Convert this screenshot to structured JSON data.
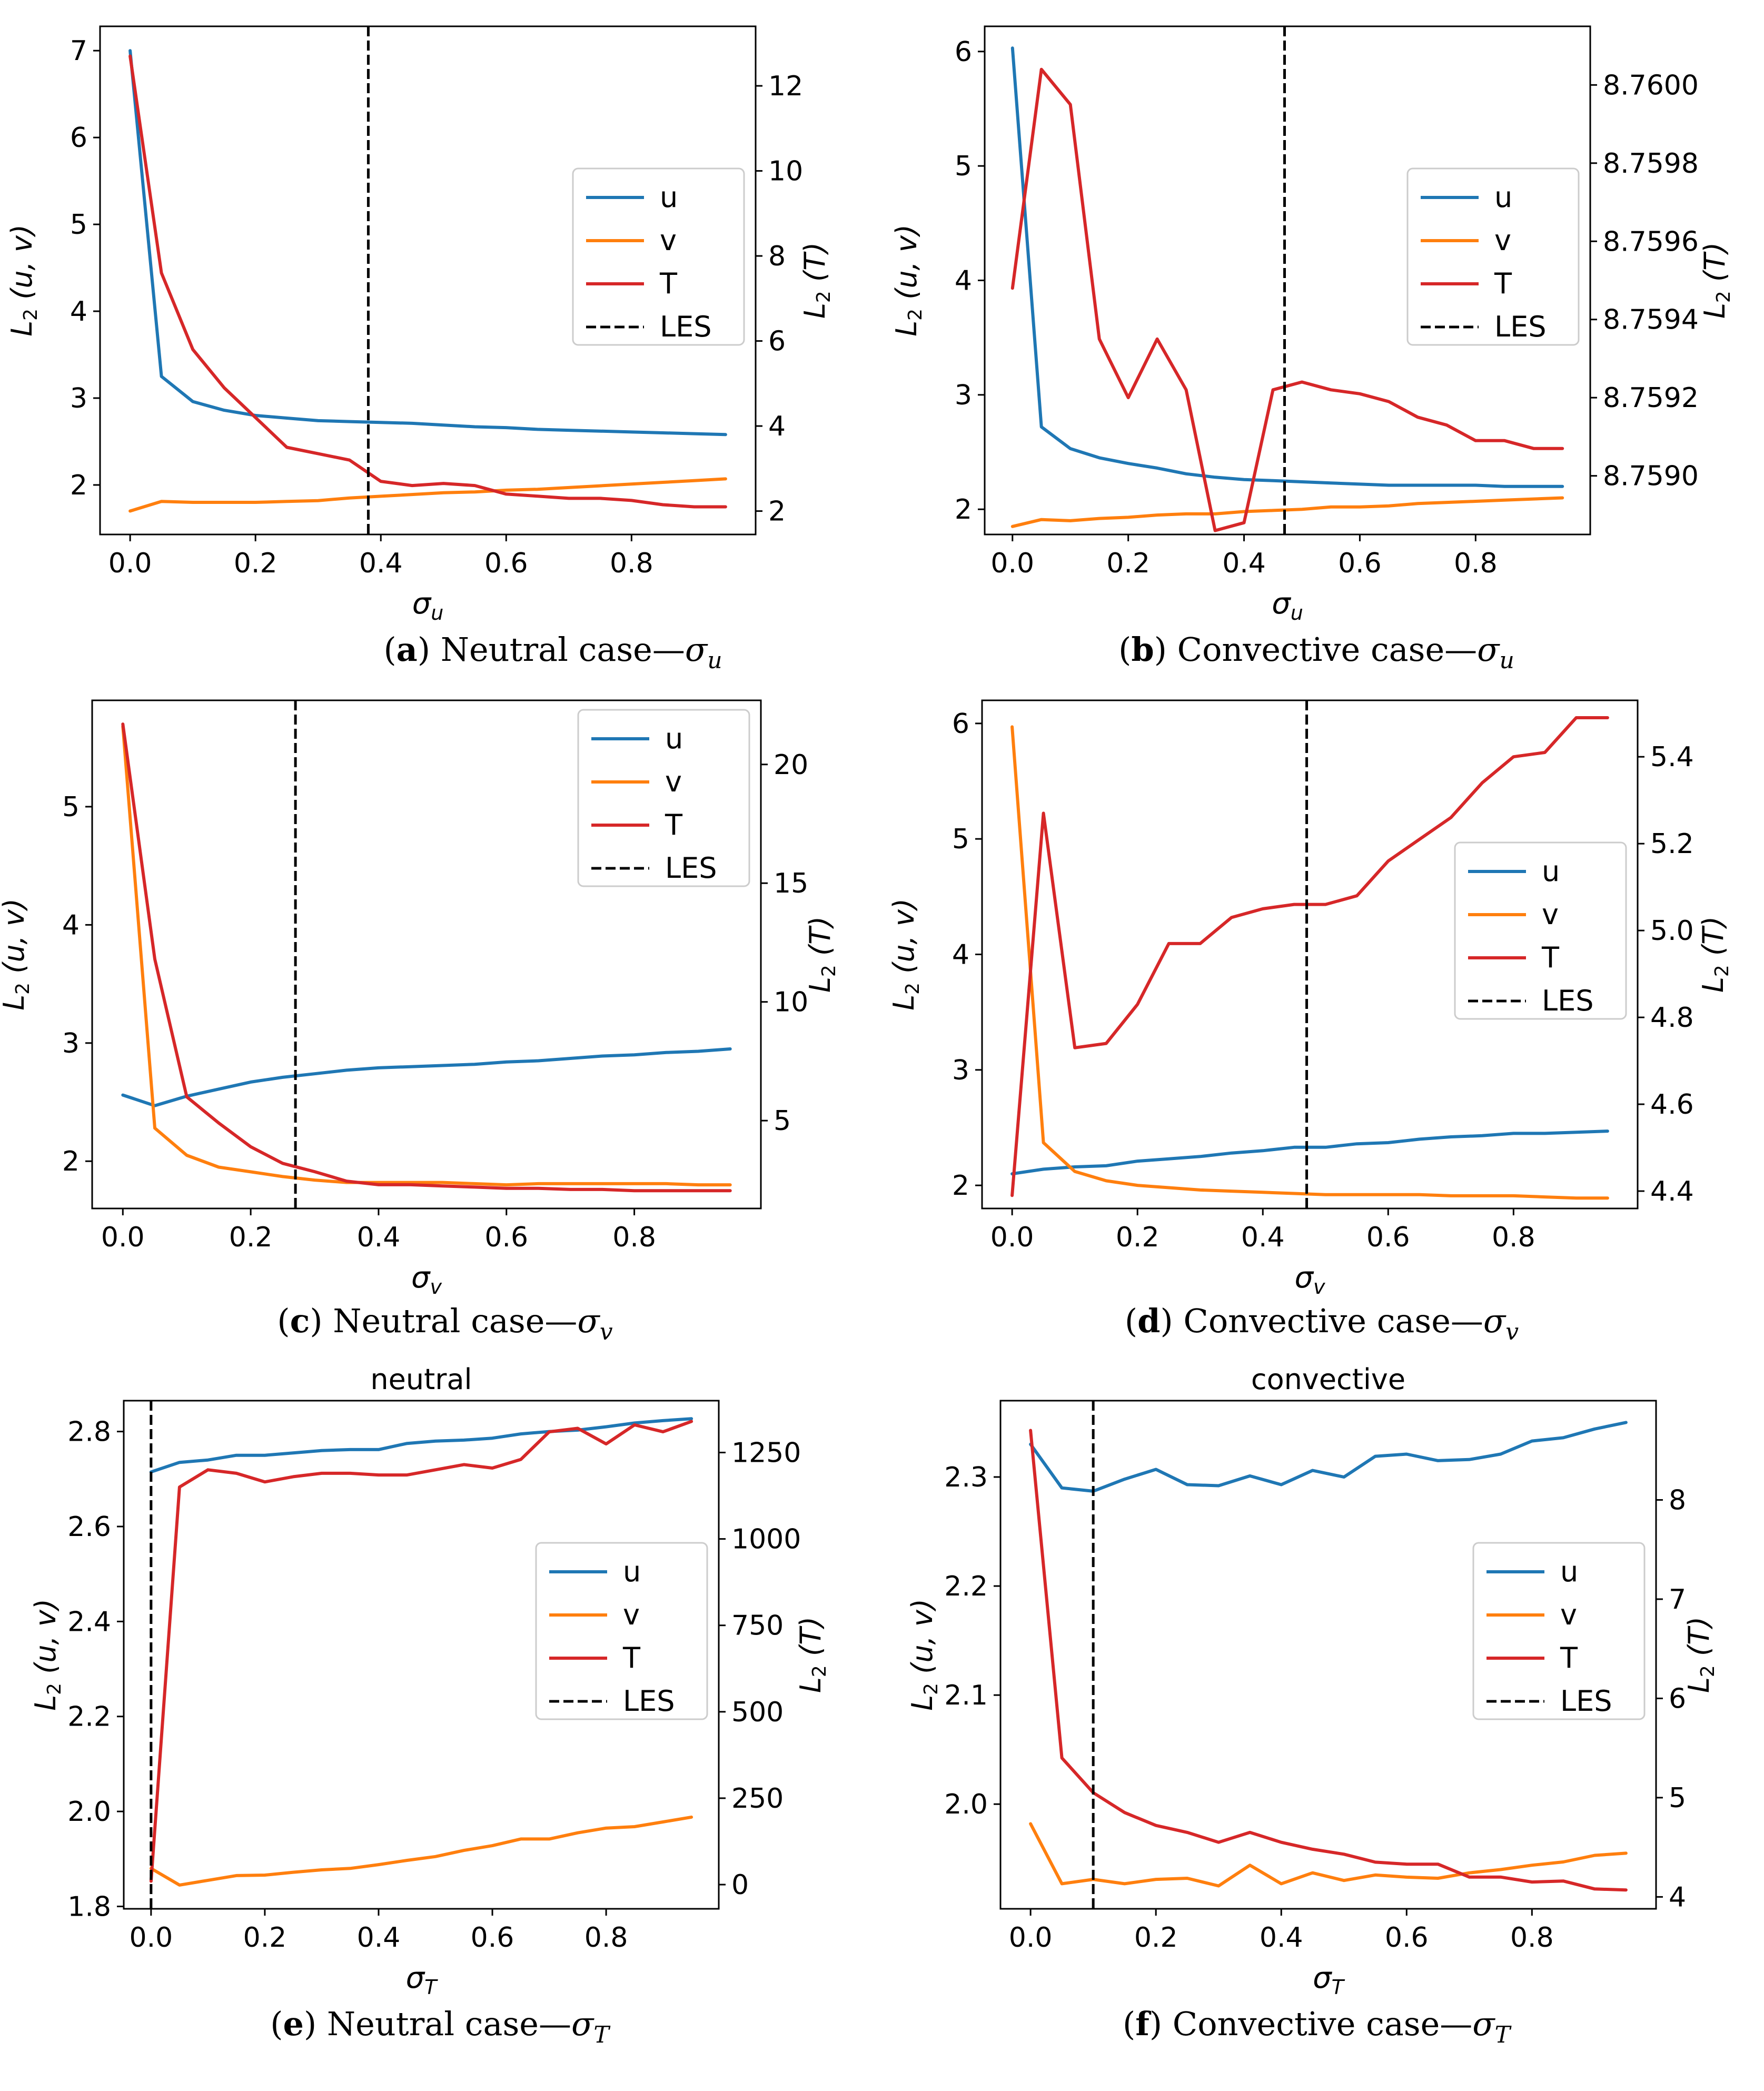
{
  "colors": {
    "u": "#1f77b4",
    "v": "#ff7f0e",
    "T": "#d62728",
    "LES": "#000000"
  },
  "chart_data": [
    {
      "id": "a",
      "type": "line",
      "title": "",
      "xlabel": "σ",
      "xlabel_sub": "u",
      "ylabel": "L",
      "ylabel_sub": "2",
      "ylabel_rest": " (u, v)",
      "y2label": "L",
      "y2label_sub": "2",
      "y2label_rest": " (T)",
      "xlim": [
        -0.048,
        0.998
      ],
      "ylim": [
        1.43,
        7.28
      ],
      "y2lim": [
        1.45,
        13.4
      ],
      "xticks": [
        0.0,
        0.2,
        0.4,
        0.6,
        0.8
      ],
      "xticklabels": [
        "0.0",
        "0.2",
        "0.4",
        "0.6",
        "0.8"
      ],
      "yticks": [
        2,
        3,
        4,
        5,
        6,
        7
      ],
      "yticklabels": [
        "2",
        "3",
        "4",
        "5",
        "6",
        "7"
      ],
      "y2ticks": [
        2,
        4,
        6,
        8,
        10,
        12
      ],
      "y2ticklabels": [
        "2",
        "4",
        "6",
        "8",
        "10",
        "12"
      ],
      "x": [
        0.0,
        0.05,
        0.1,
        0.15,
        0.2,
        0.25,
        0.3,
        0.35,
        0.4,
        0.45,
        0.5,
        0.55,
        0.6,
        0.65,
        0.7,
        0.75,
        0.8,
        0.85,
        0.9,
        0.95
      ],
      "series": [
        {
          "name": "u",
          "axis": "left",
          "values": [
            7.0,
            3.25,
            2.96,
            2.86,
            2.8,
            2.77,
            2.74,
            2.73,
            2.72,
            2.71,
            2.69,
            2.67,
            2.66,
            2.64,
            2.63,
            2.62,
            2.61,
            2.6,
            2.59,
            2.58
          ]
        },
        {
          "name": "v",
          "axis": "left",
          "values": [
            1.7,
            1.81,
            1.8,
            1.8,
            1.8,
            1.81,
            1.82,
            1.85,
            1.87,
            1.89,
            1.91,
            1.92,
            1.94,
            1.95,
            1.97,
            1.99,
            2.01,
            2.03,
            2.05,
            2.07
          ]
        },
        {
          "name": "T",
          "axis": "right",
          "values": [
            12.7,
            7.6,
            5.8,
            4.9,
            4.2,
            3.5,
            3.35,
            3.2,
            2.7,
            2.6,
            2.65,
            2.6,
            2.4,
            2.35,
            2.3,
            2.3,
            2.25,
            2.15,
            2.1,
            2.1
          ]
        }
      ],
      "vline": {
        "name": "LES",
        "x": 0.38
      },
      "legend": [
        "u",
        "v",
        "T",
        "LES"
      ],
      "legend_loc": "center-right",
      "caption": {
        "label": "(a)",
        "text": " Neutral case—σ",
        "sub": "u"
      }
    },
    {
      "id": "b",
      "type": "line",
      "title": "",
      "xlabel": "σ",
      "xlabel_sub": "u",
      "ylabel": "L",
      "ylabel_sub": "2",
      "ylabel_rest": " (u, v)",
      "y2label": "L",
      "y2label_sub": "2",
      "y2label_rest": " (T)",
      "xlim": [
        -0.048,
        0.998
      ],
      "ylim": [
        1.78,
        6.22
      ],
      "y2lim": [
        8.75885,
        8.76015
      ],
      "xticks": [
        0.0,
        0.2,
        0.4,
        0.6,
        0.8
      ],
      "xticklabels": [
        "0.0",
        "0.2",
        "0.4",
        "0.6",
        "0.8"
      ],
      "yticks": [
        2,
        3,
        4,
        5,
        6
      ],
      "yticklabels": [
        "2",
        "3",
        "4",
        "5",
        "6"
      ],
      "y2ticks": [
        8.759,
        8.7592,
        8.7594,
        8.7596,
        8.7598,
        8.76
      ],
      "y2ticklabels": [
        "8.7590",
        "8.7592",
        "8.7594",
        "8.7596",
        "8.7598",
        "8.7600"
      ],
      "x": [
        0.0,
        0.05,
        0.1,
        0.15,
        0.2,
        0.25,
        0.3,
        0.35,
        0.4,
        0.45,
        0.5,
        0.55,
        0.6,
        0.65,
        0.7,
        0.75,
        0.8,
        0.85,
        0.9,
        0.95
      ],
      "series": [
        {
          "name": "u",
          "axis": "left",
          "values": [
            6.03,
            2.72,
            2.53,
            2.45,
            2.4,
            2.36,
            2.31,
            2.28,
            2.26,
            2.25,
            2.24,
            2.23,
            2.22,
            2.21,
            2.21,
            2.21,
            2.21,
            2.2,
            2.2,
            2.2
          ]
        },
        {
          "name": "v",
          "axis": "left",
          "values": [
            1.85,
            1.91,
            1.9,
            1.92,
            1.93,
            1.95,
            1.96,
            1.96,
            1.98,
            1.99,
            2.0,
            2.02,
            2.02,
            2.03,
            2.05,
            2.06,
            2.07,
            2.08,
            2.09,
            2.1
          ]
        },
        {
          "name": "T",
          "axis": "right",
          "values": [
            8.75948,
            8.76004,
            8.75995,
            8.75935,
            8.7592,
            8.75935,
            8.75922,
            8.75886,
            8.75888,
            8.75922,
            8.75924,
            8.75922,
            8.75921,
            8.75919,
            8.75915,
            8.75913,
            8.75909,
            8.75909,
            8.75907,
            8.75907
          ]
        }
      ],
      "vline": {
        "name": "LES",
        "x": 0.47
      },
      "legend": [
        "u",
        "v",
        "T",
        "LES"
      ],
      "legend_loc": "center-right",
      "caption": {
        "label": "(b)",
        "text": " Convective case—σ",
        "sub": "u"
      }
    },
    {
      "id": "c",
      "type": "line",
      "title": "",
      "xlabel": "σ",
      "xlabel_sub": "v",
      "ylabel": "L",
      "ylabel_sub": "2",
      "ylabel_rest": " (u, v)",
      "y2label": "L",
      "y2label_sub": "2",
      "y2label_rest": " (T)",
      "xlim": [
        -0.048,
        0.998
      ],
      "ylim": [
        1.6,
        5.9
      ],
      "y2lim": [
        1.3,
        22.7
      ],
      "xticks": [
        0.0,
        0.2,
        0.4,
        0.6,
        0.8
      ],
      "xticklabels": [
        "0.0",
        "0.2",
        "0.4",
        "0.6",
        "0.8"
      ],
      "yticks": [
        2,
        3,
        4,
        5
      ],
      "yticklabels": [
        "2",
        "3",
        "4",
        "5"
      ],
      "y2ticks": [
        5,
        10,
        15,
        20
      ],
      "y2ticklabels": [
        "5",
        "10",
        "15",
        "20"
      ],
      "x": [
        0.0,
        0.05,
        0.1,
        0.15,
        0.2,
        0.25,
        0.3,
        0.35,
        0.4,
        0.45,
        0.5,
        0.55,
        0.6,
        0.65,
        0.7,
        0.75,
        0.8,
        0.85,
        0.9,
        0.95
      ],
      "series": [
        {
          "name": "u",
          "axis": "left",
          "values": [
            2.56,
            2.47,
            2.55,
            2.61,
            2.67,
            2.71,
            2.74,
            2.77,
            2.79,
            2.8,
            2.81,
            2.82,
            2.84,
            2.85,
            2.87,
            2.89,
            2.9,
            2.92,
            2.93,
            2.95
          ]
        },
        {
          "name": "v",
          "axis": "left",
          "values": [
            5.68,
            2.28,
            2.05,
            1.95,
            1.91,
            1.87,
            1.84,
            1.82,
            1.82,
            1.82,
            1.82,
            1.81,
            1.8,
            1.81,
            1.81,
            1.81,
            1.81,
            1.81,
            1.8,
            1.8
          ]
        },
        {
          "name": "T",
          "axis": "right",
          "values": [
            21.7,
            11.8,
            6.0,
            4.9,
            3.9,
            3.2,
            2.85,
            2.45,
            2.3,
            2.3,
            2.25,
            2.2,
            2.15,
            2.15,
            2.1,
            2.1,
            2.05,
            2.05,
            2.05,
            2.05
          ]
        }
      ],
      "vline": {
        "name": "LES",
        "x": 0.27
      },
      "legend": [
        "u",
        "v",
        "T",
        "LES"
      ],
      "legend_loc": "top-right",
      "caption": {
        "label": "(c)",
        "text": " Neutral case—σ",
        "sub": "v"
      }
    },
    {
      "id": "d",
      "type": "line",
      "title": "",
      "xlabel": "σ",
      "xlabel_sub": "v",
      "ylabel": "L",
      "ylabel_sub": "2",
      "ylabel_rest": " (u, v)",
      "y2label": "L",
      "y2label_sub": "2",
      "y2label_rest": " (T)",
      "xlim": [
        -0.048,
        0.998
      ],
      "ylim": [
        1.8,
        6.2
      ],
      "y2lim": [
        4.36,
        5.53
      ],
      "xticks": [
        0.0,
        0.2,
        0.4,
        0.6,
        0.8
      ],
      "xticklabels": [
        "0.0",
        "0.2",
        "0.4",
        "0.6",
        "0.8"
      ],
      "yticks": [
        2,
        3,
        4,
        5,
        6
      ],
      "yticklabels": [
        "2",
        "3",
        "4",
        "5",
        "6"
      ],
      "y2ticks": [
        4.4,
        4.6,
        4.8,
        5.0,
        5.2,
        5.4
      ],
      "y2ticklabels": [
        "4.4",
        "4.6",
        "4.8",
        "5.0",
        "5.2",
        "5.4"
      ],
      "x": [
        0.0,
        0.05,
        0.1,
        0.15,
        0.2,
        0.25,
        0.3,
        0.35,
        0.4,
        0.45,
        0.5,
        0.55,
        0.6,
        0.65,
        0.7,
        0.75,
        0.8,
        0.85,
        0.9,
        0.95
      ],
      "series": [
        {
          "name": "u",
          "axis": "left",
          "values": [
            2.1,
            2.14,
            2.16,
            2.17,
            2.21,
            2.23,
            2.25,
            2.28,
            2.3,
            2.33,
            2.33,
            2.36,
            2.37,
            2.4,
            2.42,
            2.43,
            2.45,
            2.45,
            2.46,
            2.47
          ]
        },
        {
          "name": "v",
          "axis": "left",
          "values": [
            5.97,
            2.37,
            2.12,
            2.04,
            2.0,
            1.98,
            1.96,
            1.95,
            1.94,
            1.93,
            1.92,
            1.92,
            1.92,
            1.92,
            1.91,
            1.91,
            1.91,
            1.9,
            1.89,
            1.89
          ]
        },
        {
          "name": "T",
          "axis": "right",
          "values": [
            4.39,
            5.27,
            4.73,
            4.74,
            4.83,
            4.97,
            4.97,
            5.03,
            5.05,
            5.06,
            5.06,
            5.08,
            5.16,
            5.21,
            5.26,
            5.34,
            5.4,
            5.41,
            5.49,
            5.49
          ]
        }
      ],
      "vline": {
        "name": "LES",
        "x": 0.47
      },
      "legend": [
        "u",
        "v",
        "T",
        "LES"
      ],
      "legend_loc": "center-right",
      "caption": {
        "label": "(d)",
        "text": " Convective case—σ",
        "sub": "v"
      }
    },
    {
      "id": "e",
      "type": "line",
      "title": "neutral",
      "xlabel": "σ",
      "xlabel_sub": "T",
      "ylabel": "L",
      "ylabel_sub": "2",
      "ylabel_rest": " (u, v)",
      "y2label": "L",
      "y2label_sub": "2",
      "y2label_rest": " (T)",
      "xlim": [
        -0.048,
        0.998
      ],
      "ylim": [
        1.795,
        2.865
      ],
      "y2lim": [
        -70,
        1400
      ],
      "xticks": [
        0.0,
        0.2,
        0.4,
        0.6,
        0.8
      ],
      "xticklabels": [
        "0.0",
        "0.2",
        "0.4",
        "0.6",
        "0.8"
      ],
      "yticks": [
        1.8,
        2.0,
        2.2,
        2.4,
        2.6,
        2.8
      ],
      "yticklabels": [
        "1.8",
        "2.0",
        "2.2",
        "2.4",
        "2.6",
        "2.8"
      ],
      "y2ticks": [
        0,
        250,
        500,
        750,
        1000,
        1250
      ],
      "y2ticklabels": [
        "0",
        "250",
        "500",
        "750",
        "1000",
        "1250"
      ],
      "x": [
        0.0,
        0.05,
        0.1,
        0.15,
        0.2,
        0.25,
        0.3,
        0.35,
        0.4,
        0.45,
        0.5,
        0.55,
        0.6,
        0.65,
        0.7,
        0.75,
        0.8,
        0.85,
        0.9,
        0.95
      ],
      "series": [
        {
          "name": "u",
          "axis": "left",
          "values": [
            2.715,
            2.735,
            2.74,
            2.75,
            2.75,
            2.755,
            2.76,
            2.762,
            2.762,
            2.775,
            2.78,
            2.782,
            2.786,
            2.795,
            2.8,
            2.803,
            2.81,
            2.818,
            2.823,
            2.827
          ]
        },
        {
          "name": "v",
          "axis": "left",
          "values": [
            1.88,
            1.845,
            1.855,
            1.865,
            1.866,
            1.872,
            1.877,
            1.88,
            1.888,
            1.897,
            1.905,
            1.918,
            1.928,
            1.942,
            1.942,
            1.955,
            1.965,
            1.968,
            1.978,
            1.988
          ]
        },
        {
          "name": "T",
          "axis": "right",
          "values": [
            10,
            1150,
            1200,
            1190,
            1165,
            1180,
            1190,
            1190,
            1185,
            1185,
            1200,
            1215,
            1205,
            1230,
            1310,
            1320,
            1275,
            1330,
            1310,
            1340
          ]
        }
      ],
      "vline": {
        "name": "LES",
        "x": 0.0
      },
      "legend": [
        "u",
        "v",
        "T",
        "LES"
      ],
      "legend_loc": "center-right",
      "caption": {
        "label": "(e)",
        "text": " Neutral case—σ",
        "sub": "T"
      }
    },
    {
      "id": "f",
      "type": "line",
      "title": "convective",
      "xlabel": "σ",
      "xlabel_sub": "T",
      "ylabel": "L",
      "ylabel_sub": "2",
      "ylabel_rest": " (u, v)",
      "y2label": "L",
      "y2label_sub": "2",
      "y2label_rest": " (T)",
      "xlim": [
        -0.048,
        0.998
      ],
      "ylim": [
        1.904,
        2.37
      ],
      "y2lim": [
        3.88,
        9.0
      ],
      "xticks": [
        0.0,
        0.2,
        0.4,
        0.6,
        0.8
      ],
      "xticklabels": [
        "0.0",
        "0.2",
        "0.4",
        "0.6",
        "0.8"
      ],
      "yticks": [
        2.0,
        2.1,
        2.2,
        2.3
      ],
      "yticklabels": [
        "2.0",
        "2.1",
        "2.2",
        "2.3"
      ],
      "y2ticks": [
        4,
        5,
        6,
        7,
        8
      ],
      "y2ticklabels": [
        "4",
        "5",
        "6",
        "7",
        "8"
      ],
      "x": [
        0.0,
        0.05,
        0.1,
        0.15,
        0.2,
        0.25,
        0.3,
        0.35,
        0.4,
        0.45,
        0.5,
        0.55,
        0.6,
        0.65,
        0.7,
        0.75,
        0.8,
        0.85,
        0.9,
        0.95
      ],
      "series": [
        {
          "name": "u",
          "axis": "left",
          "values": [
            2.33,
            2.29,
            2.287,
            2.298,
            2.307,
            2.293,
            2.292,
            2.301,
            2.293,
            2.306,
            2.3,
            2.319,
            2.321,
            2.315,
            2.316,
            2.321,
            2.333,
            2.336,
            2.344,
            2.35
          ]
        },
        {
          "name": "v",
          "axis": "left",
          "values": [
            1.982,
            1.927,
            1.931,
            1.927,
            1.931,
            1.932,
            1.925,
            1.944,
            1.927,
            1.937,
            1.93,
            1.935,
            1.933,
            1.932,
            1.937,
            1.94,
            1.944,
            1.947,
            1.953,
            1.955
          ]
        },
        {
          "name": "T",
          "axis": "right",
          "values": [
            8.7,
            5.4,
            5.05,
            4.85,
            4.72,
            4.65,
            4.55,
            4.65,
            4.55,
            4.48,
            4.43,
            4.35,
            4.33,
            4.33,
            4.2,
            4.2,
            4.15,
            4.16,
            4.08,
            4.07
          ]
        }
      ],
      "vline": {
        "name": "LES",
        "x": 0.1
      },
      "legend": [
        "u",
        "v",
        "T",
        "LES"
      ],
      "legend_loc": "center-right",
      "caption": {
        "label": "(f)",
        "text": " Convective case—σ",
        "sub": "T"
      }
    }
  ]
}
